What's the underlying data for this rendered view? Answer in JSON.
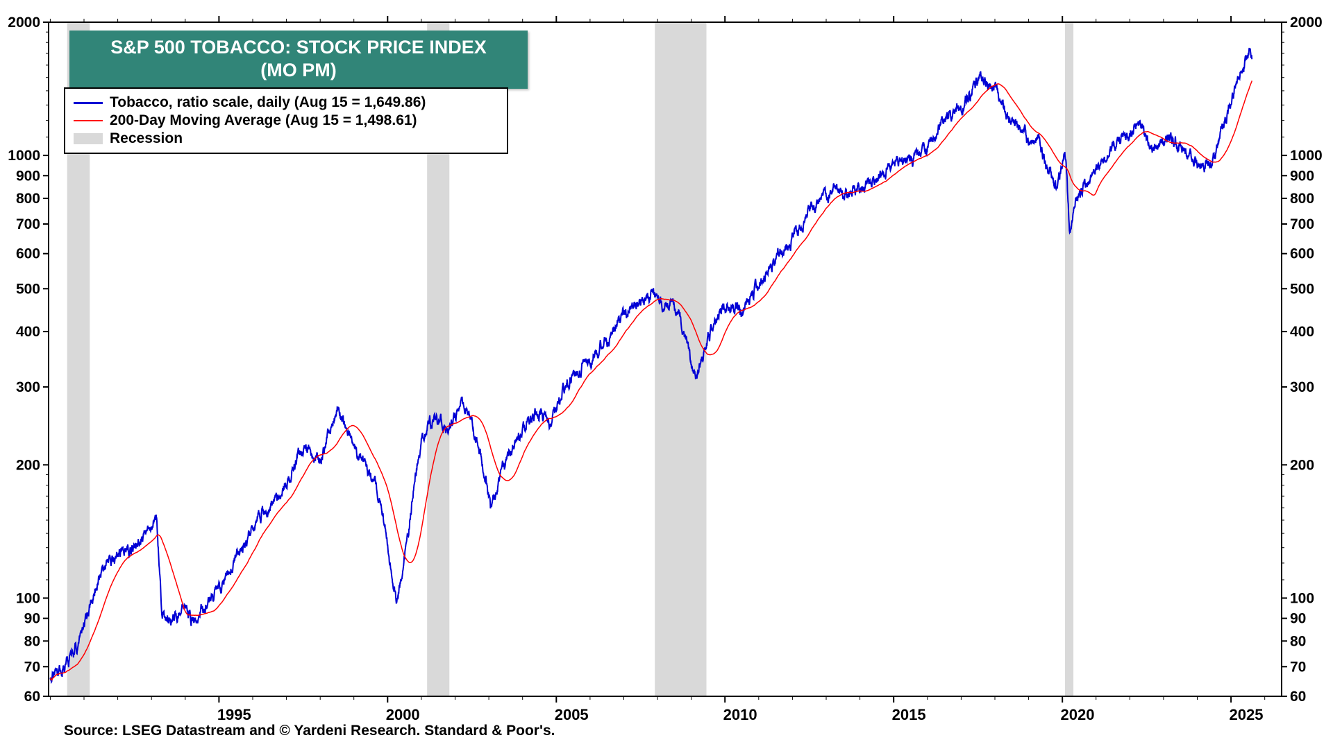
{
  "title": {
    "line1": "S&P 500 TOBACCO: STOCK PRICE INDEX",
    "line2": "(MO PM)"
  },
  "legend": {
    "items": [
      {
        "swatch": "line",
        "color": "#0000D4",
        "label": "Tobacco, ratio scale, daily (Aug 15 = 1,649.86)"
      },
      {
        "swatch": "line",
        "color": "#FF0000",
        "label": "200-Day Moving Average (Aug 15 = 1,498.61)"
      },
      {
        "swatch": "box",
        "color": "#D9D9D9",
        "label": "Recession"
      }
    ]
  },
  "source": "Source: LSEG Datastream and © Yardeni Research. Standard & Poor's.",
  "colors": {
    "title_bg": "#318578",
    "frame": "#000000",
    "recession": "#D9D9D9",
    "tobacco_line": "#0000D4",
    "ma_line": "#FF0000"
  },
  "chart_data": {
    "type": "line",
    "yscale": "log",
    "ylim": [
      60,
      2000
    ],
    "xlim": [
      1989.95,
      2026.5
    ],
    "grid": false,
    "legend_position": "top-left",
    "y_ticks_labeled": [
      60,
      70,
      80,
      90,
      100,
      200,
      300,
      400,
      500,
      600,
      700,
      800,
      900,
      1000,
      2000
    ],
    "y_ticks_minor": [
      110,
      120,
      130,
      140,
      150,
      160,
      170,
      180,
      190,
      1100,
      1200,
      1300,
      1400,
      1500,
      1600,
      1700,
      1800,
      1900
    ],
    "x_ticks_labeled": [
      1995,
      2000,
      2005,
      2010,
      2015,
      2020,
      2025
    ],
    "recessions": [
      [
        1990.5,
        1991.17
      ],
      [
        2001.17,
        2001.83
      ],
      [
        2007.92,
        2009.45
      ],
      [
        2020.08,
        2020.33
      ]
    ],
    "as_of": {
      "date": "Aug 15",
      "tobacco": 1649.86,
      "ma200": 1498.61
    },
    "jitter": 0.02,
    "series": [
      {
        "name": "Tobacco, ratio scale, daily",
        "color": "#0000D4",
        "points": [
          [
            1990.0,
            65
          ],
          [
            1990.2,
            67
          ],
          [
            1990.4,
            71
          ],
          [
            1990.6,
            74
          ],
          [
            1990.8,
            78
          ],
          [
            1991.0,
            86
          ],
          [
            1991.2,
            97
          ],
          [
            1991.4,
            110
          ],
          [
            1991.6,
            116
          ],
          [
            1991.8,
            121
          ],
          [
            1992.0,
            125
          ],
          [
            1992.2,
            130
          ],
          [
            1992.4,
            127
          ],
          [
            1992.6,
            130
          ],
          [
            1992.8,
            136
          ],
          [
            1993.0,
            146
          ],
          [
            1993.15,
            150
          ],
          [
            1993.3,
            96
          ],
          [
            1993.45,
            88
          ],
          [
            1993.6,
            90
          ],
          [
            1993.8,
            93
          ],
          [
            1994.0,
            96
          ],
          [
            1994.2,
            90
          ],
          [
            1994.4,
            93
          ],
          [
            1994.6,
            96
          ],
          [
            1994.8,
            100
          ],
          [
            1995.0,
            104
          ],
          [
            1995.2,
            112
          ],
          [
            1995.4,
            120
          ],
          [
            1995.6,
            127
          ],
          [
            1995.8,
            134
          ],
          [
            1996.0,
            144
          ],
          [
            1996.2,
            154
          ],
          [
            1996.4,
            158
          ],
          [
            1996.6,
            163
          ],
          [
            1996.8,
            172
          ],
          [
            1997.0,
            184
          ],
          [
            1997.2,
            198
          ],
          [
            1997.4,
            212
          ],
          [
            1997.6,
            216
          ],
          [
            1997.8,
            208
          ],
          [
            1998.0,
            202
          ],
          [
            1998.2,
            228
          ],
          [
            1998.4,
            252
          ],
          [
            1998.55,
            268
          ],
          [
            1998.7,
            248
          ],
          [
            1998.85,
            238
          ],
          [
            1999.0,
            222
          ],
          [
            1999.2,
            205
          ],
          [
            1999.4,
            192
          ],
          [
            1999.6,
            180
          ],
          [
            1999.8,
            165
          ],
          [
            2000.0,
            135
          ],
          [
            2000.15,
            108
          ],
          [
            2000.3,
            97
          ],
          [
            2000.45,
            118
          ],
          [
            2000.6,
            140
          ],
          [
            2000.8,
            185
          ],
          [
            2001.0,
            228
          ],
          [
            2001.2,
            246
          ],
          [
            2001.4,
            252
          ],
          [
            2001.6,
            250
          ],
          [
            2001.8,
            240
          ],
          [
            2002.0,
            256
          ],
          [
            2002.2,
            277
          ],
          [
            2002.35,
            268
          ],
          [
            2002.5,
            242
          ],
          [
            2002.7,
            215
          ],
          [
            2002.9,
            188
          ],
          [
            2003.05,
            158
          ],
          [
            2003.2,
            168
          ],
          [
            2003.4,
            192
          ],
          [
            2003.6,
            212
          ],
          [
            2003.8,
            224
          ],
          [
            2004.0,
            238
          ],
          [
            2004.2,
            252
          ],
          [
            2004.4,
            262
          ],
          [
            2004.6,
            258
          ],
          [
            2004.8,
            252
          ],
          [
            2005.0,
            268
          ],
          [
            2005.2,
            295
          ],
          [
            2005.4,
            315
          ],
          [
            2005.6,
            325
          ],
          [
            2005.8,
            332
          ],
          [
            2006.0,
            344
          ],
          [
            2006.2,
            358
          ],
          [
            2006.4,
            375
          ],
          [
            2006.6,
            392
          ],
          [
            2006.8,
            420
          ],
          [
            2007.0,
            440
          ],
          [
            2007.2,
            455
          ],
          [
            2007.4,
            468
          ],
          [
            2007.6,
            472
          ],
          [
            2007.8,
            490
          ],
          [
            2008.0,
            472
          ],
          [
            2008.2,
            460
          ],
          [
            2008.4,
            462
          ],
          [
            2008.6,
            450
          ],
          [
            2008.8,
            392
          ],
          [
            2009.0,
            340
          ],
          [
            2009.15,
            315
          ],
          [
            2009.3,
            345
          ],
          [
            2009.5,
            385
          ],
          [
            2009.7,
            425
          ],
          [
            2009.9,
            448
          ],
          [
            2010.1,
            455
          ],
          [
            2010.3,
            460
          ],
          [
            2010.5,
            442
          ],
          [
            2010.7,
            472
          ],
          [
            2010.9,
            500
          ],
          [
            2011.1,
            525
          ],
          [
            2011.3,
            560
          ],
          [
            2011.5,
            585
          ],
          [
            2011.7,
            605
          ],
          [
            2011.9,
            635
          ],
          [
            2012.1,
            665
          ],
          [
            2012.3,
            705
          ],
          [
            2012.5,
            755
          ],
          [
            2012.7,
            780
          ],
          [
            2012.9,
            800
          ],
          [
            2013.1,
            820
          ],
          [
            2013.3,
            842
          ],
          [
            2013.5,
            820
          ],
          [
            2013.7,
            828
          ],
          [
            2013.9,
            838
          ],
          [
            2014.1,
            852
          ],
          [
            2014.3,
            872
          ],
          [
            2014.5,
            890
          ],
          [
            2014.7,
            905
          ],
          [
            2014.9,
            935
          ],
          [
            2015.1,
            962
          ],
          [
            2015.3,
            980
          ],
          [
            2015.5,
            968
          ],
          [
            2015.7,
            995
          ],
          [
            2015.9,
            1030
          ],
          [
            2016.1,
            1075
          ],
          [
            2016.3,
            1140
          ],
          [
            2016.5,
            1220
          ],
          [
            2016.7,
            1228
          ],
          [
            2016.9,
            1260
          ],
          [
            2017.1,
            1300
          ],
          [
            2017.3,
            1400
          ],
          [
            2017.5,
            1490
          ],
          [
            2017.6,
            1528
          ],
          [
            2017.75,
            1455
          ],
          [
            2017.9,
            1420
          ],
          [
            2018.0,
            1448
          ],
          [
            2018.15,
            1320
          ],
          [
            2018.3,
            1240
          ],
          [
            2018.5,
            1185
          ],
          [
            2018.7,
            1160
          ],
          [
            2018.9,
            1120
          ],
          [
            2019.0,
            1040
          ],
          [
            2019.15,
            1090
          ],
          [
            2019.3,
            1105
          ],
          [
            2019.5,
            955
          ],
          [
            2019.7,
            880
          ],
          [
            2019.85,
            855
          ],
          [
            2020.0,
            955
          ],
          [
            2020.1,
            985
          ],
          [
            2020.22,
            672
          ],
          [
            2020.35,
            780
          ],
          [
            2020.5,
            815
          ],
          [
            2020.7,
            855
          ],
          [
            2020.9,
            900
          ],
          [
            2021.1,
            945
          ],
          [
            2021.3,
            995
          ],
          [
            2021.5,
            1040
          ],
          [
            2021.7,
            1072
          ],
          [
            2021.9,
            1100
          ],
          [
            2022.1,
            1135
          ],
          [
            2022.3,
            1180
          ],
          [
            2022.45,
            1120
          ],
          [
            2022.6,
            1055
          ],
          [
            2022.8,
            1020
          ],
          [
            2023.0,
            1095
          ],
          [
            2023.2,
            1080
          ],
          [
            2023.4,
            1055
          ],
          [
            2023.6,
            1035
          ],
          [
            2023.8,
            985
          ],
          [
            2024.0,
            955
          ],
          [
            2024.2,
            942
          ],
          [
            2024.4,
            965
          ],
          [
            2024.6,
            1040
          ],
          [
            2024.8,
            1190
          ],
          [
            2025.0,
            1315
          ],
          [
            2025.15,
            1440
          ],
          [
            2025.3,
            1545
          ],
          [
            2025.45,
            1655
          ],
          [
            2025.55,
            1735
          ],
          [
            2025.62,
            1649.86
          ]
        ]
      },
      {
        "name": "200-Day Moving Average",
        "color": "#FF0000",
        "derived_from": 0,
        "window_days": 200
      }
    ]
  }
}
